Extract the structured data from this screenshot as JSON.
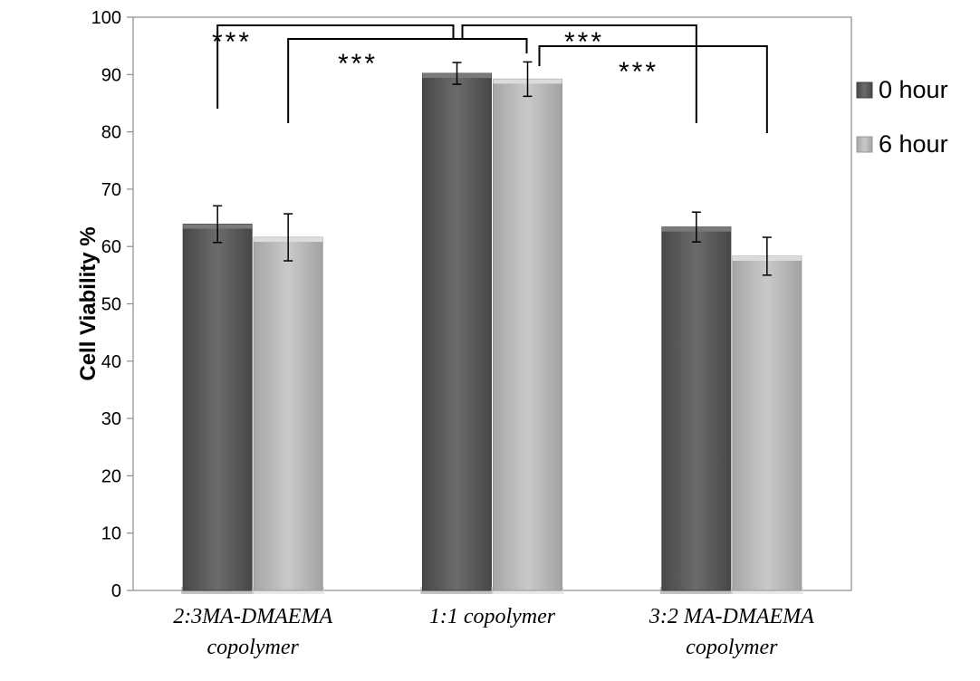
{
  "chart_data": {
    "type": "bar",
    "title": "",
    "xlabel": "",
    "ylabel": "Cell Viability %",
    "ylim": [
      0,
      100
    ],
    "yticks": [
      0,
      10,
      20,
      30,
      40,
      50,
      60,
      70,
      80,
      90,
      100
    ],
    "grid": false,
    "legend_position": "right",
    "categories": [
      [
        "2:3MA-DMAEMA",
        "copolymer"
      ],
      [
        "1:1 copolymer"
      ],
      [
        "3:2 MA-DMAEMA",
        "copolymer"
      ]
    ],
    "series": [
      {
        "name": "0 hour",
        "color": "#5f5f5f",
        "values": [
          63.9,
          90.2,
          63.4
        ],
        "errors": [
          3.2,
          1.9,
          2.6
        ]
      },
      {
        "name": "6 hour",
        "color": "#bcbcbc",
        "values": [
          61.6,
          89.2,
          58.3
        ],
        "errors": [
          4.1,
          3.0,
          3.3
        ]
      }
    ],
    "annotations": [
      {
        "label": "***",
        "from": [
          0,
          0
        ],
        "to": [
          1,
          0
        ]
      },
      {
        "label": "***",
        "from": [
          0,
          1
        ],
        "to": [
          1,
          1
        ]
      },
      {
        "label": "***",
        "from": [
          1,
          0
        ],
        "to": [
          2,
          0
        ]
      },
      {
        "label": "***",
        "from": [
          1,
          1
        ],
        "to": [
          2,
          1
        ]
      }
    ]
  }
}
